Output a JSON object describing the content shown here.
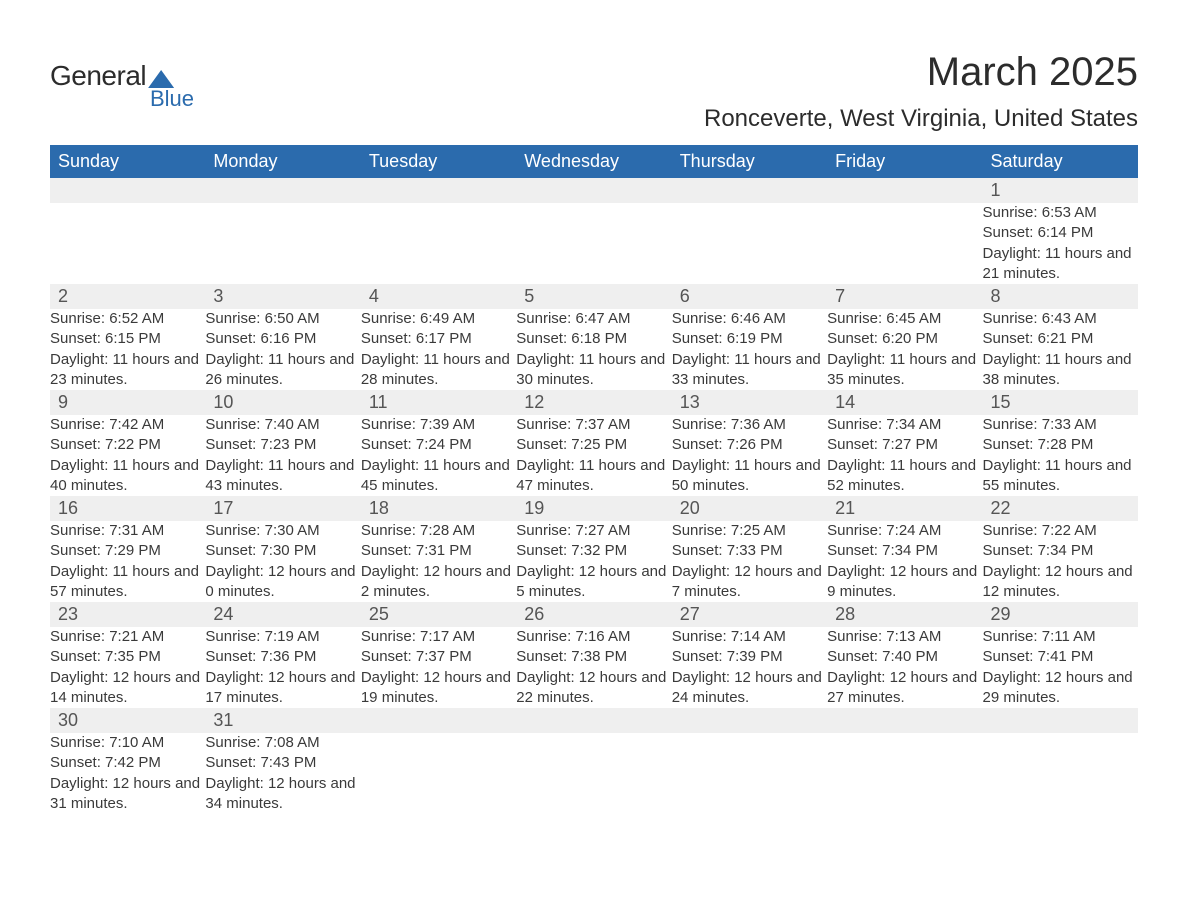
{
  "logo": {
    "text_general": "General",
    "text_blue": "Blue",
    "brand_color": "#2b6bad"
  },
  "title": "March 2025",
  "location": "Ronceverte, West Virginia, United States",
  "weekday_labels": [
    "Sunday",
    "Monday",
    "Tuesday",
    "Wednesday",
    "Thursday",
    "Friday",
    "Saturday"
  ],
  "colors": {
    "header_bg": "#2b6bad",
    "header_text": "#ffffff",
    "daynum_bg": "#efefef",
    "row_divider": "#2b6bad",
    "body_text": "#3a3a3a"
  },
  "weeks": [
    [
      null,
      null,
      null,
      null,
      null,
      null,
      {
        "n": "1",
        "sunrise": "6:53 AM",
        "sunset": "6:14 PM",
        "daylight": "11 hours and 21 minutes."
      }
    ],
    [
      {
        "n": "2",
        "sunrise": "6:52 AM",
        "sunset": "6:15 PM",
        "daylight": "11 hours and 23 minutes."
      },
      {
        "n": "3",
        "sunrise": "6:50 AM",
        "sunset": "6:16 PM",
        "daylight": "11 hours and 26 minutes."
      },
      {
        "n": "4",
        "sunrise": "6:49 AM",
        "sunset": "6:17 PM",
        "daylight": "11 hours and 28 minutes."
      },
      {
        "n": "5",
        "sunrise": "6:47 AM",
        "sunset": "6:18 PM",
        "daylight": "11 hours and 30 minutes."
      },
      {
        "n": "6",
        "sunrise": "6:46 AM",
        "sunset": "6:19 PM",
        "daylight": "11 hours and 33 minutes."
      },
      {
        "n": "7",
        "sunrise": "6:45 AM",
        "sunset": "6:20 PM",
        "daylight": "11 hours and 35 minutes."
      },
      {
        "n": "8",
        "sunrise": "6:43 AM",
        "sunset": "6:21 PM",
        "daylight": "11 hours and 38 minutes."
      }
    ],
    [
      {
        "n": "9",
        "sunrise": "7:42 AM",
        "sunset": "7:22 PM",
        "daylight": "11 hours and 40 minutes."
      },
      {
        "n": "10",
        "sunrise": "7:40 AM",
        "sunset": "7:23 PM",
        "daylight": "11 hours and 43 minutes."
      },
      {
        "n": "11",
        "sunrise": "7:39 AM",
        "sunset": "7:24 PM",
        "daylight": "11 hours and 45 minutes."
      },
      {
        "n": "12",
        "sunrise": "7:37 AM",
        "sunset": "7:25 PM",
        "daylight": "11 hours and 47 minutes."
      },
      {
        "n": "13",
        "sunrise": "7:36 AM",
        "sunset": "7:26 PM",
        "daylight": "11 hours and 50 minutes."
      },
      {
        "n": "14",
        "sunrise": "7:34 AM",
        "sunset": "7:27 PM",
        "daylight": "11 hours and 52 minutes."
      },
      {
        "n": "15",
        "sunrise": "7:33 AM",
        "sunset": "7:28 PM",
        "daylight": "11 hours and 55 minutes."
      }
    ],
    [
      {
        "n": "16",
        "sunrise": "7:31 AM",
        "sunset": "7:29 PM",
        "daylight": "11 hours and 57 minutes."
      },
      {
        "n": "17",
        "sunrise": "7:30 AM",
        "sunset": "7:30 PM",
        "daylight": "12 hours and 0 minutes."
      },
      {
        "n": "18",
        "sunrise": "7:28 AM",
        "sunset": "7:31 PM",
        "daylight": "12 hours and 2 minutes."
      },
      {
        "n": "19",
        "sunrise": "7:27 AM",
        "sunset": "7:32 PM",
        "daylight": "12 hours and 5 minutes."
      },
      {
        "n": "20",
        "sunrise": "7:25 AM",
        "sunset": "7:33 PM",
        "daylight": "12 hours and 7 minutes."
      },
      {
        "n": "21",
        "sunrise": "7:24 AM",
        "sunset": "7:34 PM",
        "daylight": "12 hours and 9 minutes."
      },
      {
        "n": "22",
        "sunrise": "7:22 AM",
        "sunset": "7:34 PM",
        "daylight": "12 hours and 12 minutes."
      }
    ],
    [
      {
        "n": "23",
        "sunrise": "7:21 AM",
        "sunset": "7:35 PM",
        "daylight": "12 hours and 14 minutes."
      },
      {
        "n": "24",
        "sunrise": "7:19 AM",
        "sunset": "7:36 PM",
        "daylight": "12 hours and 17 minutes."
      },
      {
        "n": "25",
        "sunrise": "7:17 AM",
        "sunset": "7:37 PM",
        "daylight": "12 hours and 19 minutes."
      },
      {
        "n": "26",
        "sunrise": "7:16 AM",
        "sunset": "7:38 PM",
        "daylight": "12 hours and 22 minutes."
      },
      {
        "n": "27",
        "sunrise": "7:14 AM",
        "sunset": "7:39 PM",
        "daylight": "12 hours and 24 minutes."
      },
      {
        "n": "28",
        "sunrise": "7:13 AM",
        "sunset": "7:40 PM",
        "daylight": "12 hours and 27 minutes."
      },
      {
        "n": "29",
        "sunrise": "7:11 AM",
        "sunset": "7:41 PM",
        "daylight": "12 hours and 29 minutes."
      }
    ],
    [
      {
        "n": "30",
        "sunrise": "7:10 AM",
        "sunset": "7:42 PM",
        "daylight": "12 hours and 31 minutes."
      },
      {
        "n": "31",
        "sunrise": "7:08 AM",
        "sunset": "7:43 PM",
        "daylight": "12 hours and 34 minutes."
      },
      null,
      null,
      null,
      null,
      null
    ]
  ],
  "labels": {
    "sunrise": "Sunrise:",
    "sunset": "Sunset:",
    "daylight": "Daylight:"
  }
}
